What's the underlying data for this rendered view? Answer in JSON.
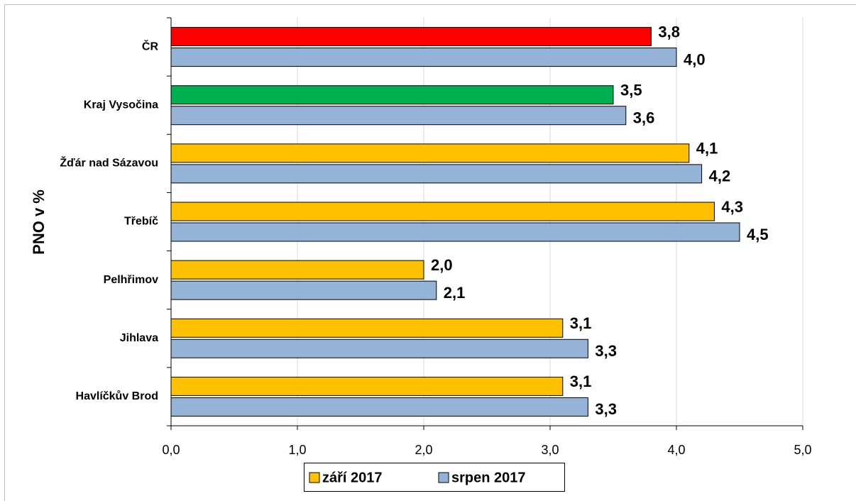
{
  "chart_data": {
    "type": "hbar",
    "y_label": "PNO v %",
    "categories": [
      "ČR",
      "Kraj Vysočina",
      "Žďár nad Sázavou",
      "Třebíč",
      "Pelhřimov",
      "Jihlava",
      "Havlíčkův Brod"
    ],
    "series": [
      {
        "name": "září 2017",
        "color": "#ffc000",
        "bar_colors": [
          "#ff0000",
          "#00b050",
          "#ffc000",
          "#ffc000",
          "#ffc000",
          "#ffc000",
          "#ffc000"
        ],
        "values": [
          3.8,
          3.5,
          4.1,
          4.3,
          2.0,
          3.1,
          3.1
        ],
        "value_labels": [
          "3,8",
          "3,5",
          "4,1",
          "4,3",
          "2,0",
          "3,1",
          "3,1"
        ]
      },
      {
        "name": "srpen 2017",
        "color": "#95b3d7",
        "values": [
          4.0,
          3.6,
          4.2,
          4.5,
          2.1,
          3.3,
          3.3
        ],
        "value_labels": [
          "4,0",
          "3,6",
          "4,2",
          "4,5",
          "2,1",
          "3,3",
          "3,3"
        ]
      }
    ],
    "xlim": [
      0,
      5
    ],
    "xticks": [
      {
        "value": 0,
        "label": "0,0"
      },
      {
        "value": 1,
        "label": "1,0"
      },
      {
        "value": 2,
        "label": "2,0"
      },
      {
        "value": 3,
        "label": "3,0"
      },
      {
        "value": 4,
        "label": "4,0"
      },
      {
        "value": 5,
        "label": "5,0"
      }
    ],
    "grid": true,
    "legend": "bottom"
  }
}
